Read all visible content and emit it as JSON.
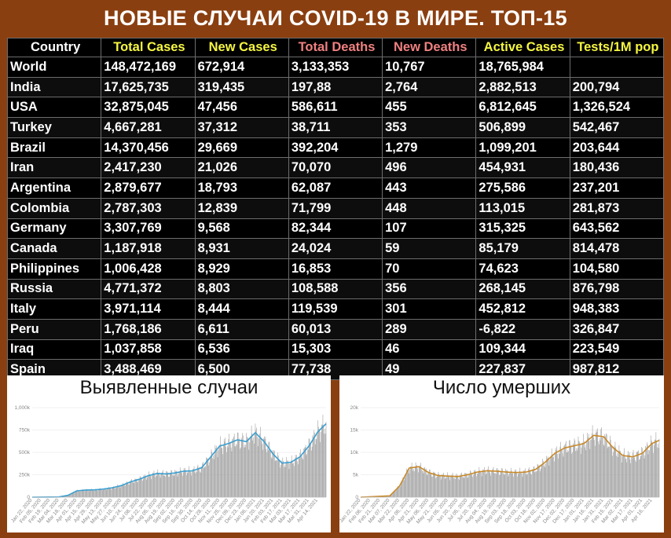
{
  "title": "НОВЫЕ СЛУЧАИ COVID-19 В МИРЕ. ТОП-15",
  "table": {
    "headers": [
      {
        "label": "Country",
        "color": "#ffffff"
      },
      {
        "label": "Total Cases",
        "color": "#f5f542"
      },
      {
        "label": "New Cases",
        "color": "#f5f542"
      },
      {
        "label": "Total Deaths",
        "color": "#f08080"
      },
      {
        "label": "New Deaths",
        "color": "#f08080"
      },
      {
        "label": "Active Cases",
        "color": "#f5f542"
      },
      {
        "label": "Tests/1M pop",
        "color": "#f5f542"
      }
    ],
    "rows": [
      [
        "World",
        "148,472,169",
        "672,914",
        "3,133,353",
        "10,767",
        "18,765,984",
        ""
      ],
      [
        "India",
        "17,625,735",
        "319,435",
        "197,88",
        "2,764",
        "2,882,513",
        "200,794"
      ],
      [
        "USA",
        "32,875,045",
        "47,456",
        "586,611",
        "455",
        "6,812,645",
        "1,326,524"
      ],
      [
        "Turkey",
        "4,667,281",
        "37,312",
        "38,711",
        "353",
        "506,899",
        "542,467"
      ],
      [
        "Brazil",
        "14,370,456",
        "29,669",
        "392,204",
        "1,279",
        "1,099,201",
        "203,644"
      ],
      [
        "Iran",
        "2,417,230",
        "21,026",
        "70,070",
        "496",
        "454,931",
        "180,436"
      ],
      [
        "Argentina",
        "2,879,677",
        "18,793",
        "62,087",
        "443",
        "275,586",
        "237,201"
      ],
      [
        "Colombia",
        "2,787,303",
        "12,839",
        "71,799",
        "448",
        "113,015",
        "281,873"
      ],
      [
        "Germany",
        "3,307,769",
        "9,568",
        "82,344",
        "107",
        "315,325",
        "643,562"
      ],
      [
        "Canada",
        "1,187,918",
        "8,931",
        "24,024",
        "59",
        "85,179",
        "814,478"
      ],
      [
        "Philippines",
        "1,006,428",
        "8,929",
        "16,853",
        "70",
        "74,623",
        "104,580"
      ],
      [
        "Russia",
        "4,771,372",
        "8,803",
        "108,588",
        "356",
        "268,145",
        "876,798"
      ],
      [
        "Italy",
        "3,971,114",
        "8,444",
        "119,539",
        "301",
        "452,812",
        "948,383"
      ],
      [
        "Peru",
        "1,768,186",
        "6,611",
        "60,013",
        "289",
        "-6,822",
        "326,847"
      ],
      [
        "Iraq",
        "1,037,858",
        "6,536",
        "15,303",
        "46",
        "109,344",
        "223,549"
      ],
      [
        "Spain",
        "3,488,469",
        "6,500",
        "77,738",
        "49",
        "227,837",
        "987,812"
      ]
    ]
  },
  "chart_data": [
    {
      "type": "bar",
      "title": "Выявленные случаи",
      "line_color": "#3a9fd1",
      "bar_color": "#9a9a9a",
      "ylim": [
        0,
        1000000
      ],
      "yticks": [
        "0",
        "250k",
        "500k",
        "750k",
        "1,000k"
      ],
      "ytick_values": [
        0,
        250000,
        500000,
        750000,
        1000000
      ],
      "xticks": [
        "Jan 22, 2020",
        "Feb 05, 2020",
        "Feb 19, 2020",
        "Mar 04, 2020",
        "Mar 18, 2020",
        "Apr 01, 2020",
        "Apr 15, 2020",
        "Apr 29, 2020",
        "May 13, 2020",
        "May 27, 2020",
        "Jun 10, 2020",
        "Jun 24, 2020",
        "Jul 08, 2020",
        "Jul 22, 2020",
        "Aug 05, 2020",
        "Aug 19, 2020",
        "Sep 02, 2020",
        "Sep 16, 2020",
        "Sep 30, 2020",
        "Oct 14, 2020",
        "Oct 28, 2020",
        "Nov 11, 2020",
        "Nov 25, 2020",
        "Dec 09, 2020",
        "Dec 23, 2020",
        "Jan 06, 2021",
        "Jan 20, 2021",
        "Feb 03, 2021",
        "Feb 17, 2021",
        "Mar 03, 2021",
        "Mar 17, 2021",
        "Mar 31, 2021",
        "Apr 14, 2021"
      ],
      "smoothed": [
        {
          "x": "Jan 22, 2020",
          "y": 0
        },
        {
          "x": "Feb 19, 2020",
          "y": 2000
        },
        {
          "x": "Mar 04, 2020",
          "y": 3000
        },
        {
          "x": "Mar 18, 2020",
          "y": 20000
        },
        {
          "x": "Apr 01, 2020",
          "y": 70000
        },
        {
          "x": "Apr 15, 2020",
          "y": 80000
        },
        {
          "x": "Apr 29, 2020",
          "y": 82000
        },
        {
          "x": "May 13, 2020",
          "y": 90000
        },
        {
          "x": "May 27, 2020",
          "y": 105000
        },
        {
          "x": "Jun 10, 2020",
          "y": 130000
        },
        {
          "x": "Jun 24, 2020",
          "y": 170000
        },
        {
          "x": "Jul 08, 2020",
          "y": 200000
        },
        {
          "x": "Jul 22, 2020",
          "y": 240000
        },
        {
          "x": "Aug 05, 2020",
          "y": 265000
        },
        {
          "x": "Aug 19, 2020",
          "y": 260000
        },
        {
          "x": "Sep 02, 2020",
          "y": 270000
        },
        {
          "x": "Sep 16, 2020",
          "y": 290000
        },
        {
          "x": "Sep 30, 2020",
          "y": 295000
        },
        {
          "x": "Oct 14, 2020",
          "y": 330000
        },
        {
          "x": "Oct 28, 2020",
          "y": 450000
        },
        {
          "x": "Nov 11, 2020",
          "y": 570000
        },
        {
          "x": "Nov 25, 2020",
          "y": 600000
        },
        {
          "x": "Dec 09, 2020",
          "y": 640000
        },
        {
          "x": "Dec 23, 2020",
          "y": 620000
        },
        {
          "x": "Jan 06, 2021",
          "y": 720000
        },
        {
          "x": "Jan 20, 2021",
          "y": 620000
        },
        {
          "x": "Feb 03, 2021",
          "y": 480000
        },
        {
          "x": "Feb 17, 2021",
          "y": 380000
        },
        {
          "x": "Mar 03, 2021",
          "y": 390000
        },
        {
          "x": "Mar 17, 2021",
          "y": 450000
        },
        {
          "x": "Mar 31, 2021",
          "y": 570000
        },
        {
          "x": "Apr 14, 2021",
          "y": 730000
        },
        {
          "x": "Apr 27, 2021",
          "y": 820000
        }
      ]
    },
    {
      "type": "bar",
      "title": "Число умерших",
      "line_color": "#c98a2a",
      "bar_color": "#9a9a9a",
      "ylim": [
        0,
        20000
      ],
      "yticks": [
        "0",
        "5k",
        "10k",
        "15k",
        "20k"
      ],
      "ytick_values": [
        0,
        5000,
        10000,
        15000,
        20000
      ],
      "xticks": [
        "Jan 22, 2020",
        "Feb 06, 2020",
        "Feb 21, 2020",
        "Mar 07, 2020",
        "Mar 22, 2020",
        "Apr 06, 2020",
        "Apr 21, 2020",
        "May 06, 2020",
        "May 21, 2020",
        "Jun 05, 2020",
        "Jun 20, 2020",
        "Jul 05, 2020",
        "Jul 20, 2020",
        "Aug 04, 2020",
        "Aug 19, 2020",
        "Sep 03, 2020",
        "Sep 18, 2020",
        "Oct 03, 2020",
        "Oct 18, 2020",
        "Nov 02, 2020",
        "Nov 17, 2020",
        "Dec 02, 2020",
        "Dec 17, 2020",
        "Jan 01, 2021",
        "Jan 16, 2021",
        "Jan 31, 2021",
        "Feb 15, 2021",
        "Mar 02, 2021",
        "Mar 17, 2021",
        "Apr 01, 2021",
        "Apr 16, 2021"
      ],
      "smoothed": [
        {
          "x": "Jan 22, 2020",
          "y": 0
        },
        {
          "x": "Mar 07, 2020",
          "y": 300
        },
        {
          "x": "Mar 22, 2020",
          "y": 2500
        },
        {
          "x": "Apr 06, 2020",
          "y": 6500
        },
        {
          "x": "Apr 21, 2020",
          "y": 6800
        },
        {
          "x": "May 06, 2020",
          "y": 5500
        },
        {
          "x": "May 21, 2020",
          "y": 4800
        },
        {
          "x": "Jun 05, 2020",
          "y": 4700
        },
        {
          "x": "Jun 20, 2020",
          "y": 4600
        },
        {
          "x": "Jul 05, 2020",
          "y": 5000
        },
        {
          "x": "Jul 20, 2020",
          "y": 5600
        },
        {
          "x": "Aug 04, 2020",
          "y": 5900
        },
        {
          "x": "Aug 19, 2020",
          "y": 5800
        },
        {
          "x": "Sep 03, 2020",
          "y": 5600
        },
        {
          "x": "Sep 18, 2020",
          "y": 5500
        },
        {
          "x": "Oct 03, 2020",
          "y": 5600
        },
        {
          "x": "Oct 18, 2020",
          "y": 6200
        },
        {
          "x": "Nov 02, 2020",
          "y": 7800
        },
        {
          "x": "Nov 17, 2020",
          "y": 9800
        },
        {
          "x": "Dec 02, 2020",
          "y": 11000
        },
        {
          "x": "Dec 17, 2020",
          "y": 11500
        },
        {
          "x": "Jan 01, 2021",
          "y": 12000
        },
        {
          "x": "Jan 16, 2021",
          "y": 13800
        },
        {
          "x": "Jan 31, 2021",
          "y": 13500
        },
        {
          "x": "Feb 15, 2021",
          "y": 11000
        },
        {
          "x": "Mar 02, 2021",
          "y": 9300
        },
        {
          "x": "Mar 17, 2021",
          "y": 9000
        },
        {
          "x": "Apr 01, 2021",
          "y": 9800
        },
        {
          "x": "Apr 16, 2021",
          "y": 12000
        },
        {
          "x": "Apr 27, 2021",
          "y": 12700
        }
      ]
    }
  ]
}
